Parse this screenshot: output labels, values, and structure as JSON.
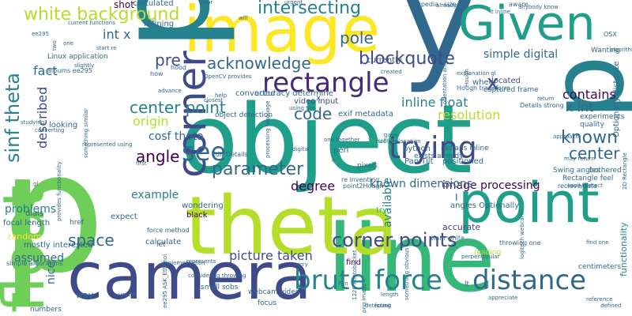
{
  "colors": {
    "background": "#ffffff",
    "palette": [
      "#440154",
      "#482878",
      "#3e4a89",
      "#31688e",
      "#26828e",
      "#1f9e89",
      "#35b779",
      "#6ece58",
      "#b5de2b",
      "#fde725"
    ]
  },
  "words": [
    {
      "text": "object",
      "color": "#1f9e89"
    },
    {
      "text": "p",
      "color": "#6ece58"
    },
    {
      "text": "float",
      "color": "#6ece58"
    },
    {
      "text": "line",
      "color": "#35b779"
    },
    {
      "text": "y",
      "color": "#31688e"
    },
    {
      "text": "theta",
      "color": "#b5de2b"
    },
    {
      "text": "image",
      "color": "#fde725"
    },
    {
      "text": "p",
      "color": "#26828e"
    },
    {
      "text": "camera",
      "color": "#3e4a89"
    },
    {
      "text": "Given",
      "color": "#1f9e89"
    },
    {
      "text": "point",
      "color": "#1f9e89"
    },
    {
      "text": "corner",
      "color": "#3e4a89"
    },
    {
      "text": "rectangle",
      "color": "#482878"
    },
    {
      "text": "brute force",
      "color": "#26828e"
    },
    {
      "text": "distance",
      "color": "#31688e"
    },
    {
      "text": "trying",
      "color": "#3e4a89"
    },
    {
      "text": "parameter",
      "color": "#31688e"
    },
    {
      "text": "sinf theta",
      "color": "#26828e"
    },
    {
      "text": "white background",
      "color": "#b5de2b"
    },
    {
      "text": "intersecting",
      "color": "#26828e"
    },
    {
      "text": "corner points",
      "color": "#3e4a89"
    },
    {
      "text": "see",
      "color": "#31688e"
    },
    {
      "text": "center point",
      "color": "#26828e"
    },
    {
      "text": "known",
      "color": "#31688e"
    },
    {
      "text": "center",
      "color": "#31688e"
    },
    {
      "text": "x",
      "color": "#3e4a89"
    },
    {
      "text": "code",
      "color": "#31688e"
    },
    {
      "text": "angle",
      "color": "#440154"
    },
    {
      "text": "blockquote",
      "color": "#3e4a89"
    },
    {
      "text": "pole",
      "color": "#31688e"
    },
    {
      "text": "acknowledge",
      "color": "#31688e"
    },
    {
      "text": "pre",
      "color": "#3e4a89"
    },
    {
      "text": "fact",
      "color": "#31688e"
    },
    {
      "text": "space",
      "color": "#31688e"
    },
    {
      "text": "image processing",
      "color": "#440154"
    },
    {
      "text": "inline float",
      "color": "#26828e"
    },
    {
      "text": "origin",
      "color": "#b5de2b"
    },
    {
      "text": "resolution",
      "color": "#b5de2b"
    },
    {
      "text": "cosf theta",
      "color": "#31688e"
    },
    {
      "text": "picture taken",
      "color": "#3e4a89"
    },
    {
      "text": "described",
      "color": "#3e4a89"
    },
    {
      "text": "assumed",
      "color": "#31688e"
    },
    {
      "text": "problems",
      "color": "#26828e"
    },
    {
      "text": "known dimensions",
      "color": "#31688e"
    },
    {
      "text": "degree",
      "color": "#440154"
    },
    {
      "text": "x int",
      "color": "#31688e"
    },
    {
      "text": "int x",
      "color": "#31688e"
    },
    {
      "text": "contains",
      "color": "#440154"
    },
    {
      "text": "simple digital",
      "color": "#31688e"
    },
    {
      "text": "example",
      "color": "#26828e"
    },
    {
      "text": "nice",
      "color": "#31688e"
    },
    {
      "text": "available",
      "color": "#26828e"
    },
    {
      "text": "shot",
      "color": "#440154"
    },
    {
      "text": "calculated",
      "color": "#31688e"
    },
    {
      "text": "refining",
      "color": "#31688e"
    },
    {
      "text": "Linux application",
      "color": "#31688e"
    },
    {
      "text": "albums ee295",
      "color": "#31688e"
    },
    {
      "text": "converted",
      "color": "#31688e"
    },
    {
      "text": "accuracy determine",
      "color": "#31688e"
    },
    {
      "text": "video input",
      "color": "#3e4a89"
    },
    {
      "text": "exif metadata",
      "color": "#31688e"
    },
    {
      "text": "object detection",
      "color": "#31688e"
    },
    {
      "text": "Hough transform",
      "color": "#31688e"
    },
    {
      "text": "Details strong",
      "color": "#31688e"
    },
    {
      "text": "currently",
      "color": "#3e4a89"
    },
    {
      "text": "located",
      "color": "#3e4a89"
    },
    {
      "text": "captured frame",
      "color": "#31688e"
    },
    {
      "text": "wheel",
      "color": "#31688e"
    },
    {
      "text": "experiments",
      "color": "#31688e"
    },
    {
      "text": "quality",
      "color": "#31688e"
    },
    {
      "text": "Optionally distance",
      "color": "#31688e"
    },
    {
      "text": "functionality",
      "color": "#26828e"
    },
    {
      "text": "perl",
      "color": "#31688e"
    },
    {
      "text": "python",
      "color": "#31688e"
    },
    {
      "text": "figured",
      "color": "#35b779"
    },
    {
      "text": "positioned",
      "color": "#31688e"
    },
    {
      "text": "pixels",
      "color": "#31688e"
    },
    {
      "text": "Pan Tilt",
      "color": "#31688e"
    },
    {
      "text": "exists already",
      "color": "#31688e"
    },
    {
      "text": "radians inline",
      "color": "#31688e"
    },
    {
      "text": "Swing angles",
      "color": "#31688e"
    },
    {
      "text": "Rectangle feel",
      "color": "#31688e"
    },
    {
      "text": "bothered",
      "color": "#31688e"
    },
    {
      "text": "Edit Details",
      "color": "#31688e"
    },
    {
      "text": "re inventing",
      "color": "#31688e"
    },
    {
      "text": "point2Hough",
      "color": "#31688e"
    },
    {
      "text": "angles Optionally",
      "color": "#31688e"
    },
    {
      "text": "recieve data",
      "color": "#31688e"
    },
    {
      "text": "accurate",
      "color": "#3e4a89"
    },
    {
      "text": "plain white",
      "color": "#31688e"
    },
    {
      "text": "throwing one",
      "color": "#31688e"
    },
    {
      "text": "reading",
      "color": "#b5de2b"
    },
    {
      "text": "centimeters",
      "color": "#31688e"
    },
    {
      "text": "focal length",
      "color": "#31688e"
    },
    {
      "text": "href",
      "color": "#31688e"
    },
    {
      "text": "dials",
      "color": "#31688e"
    },
    {
      "text": "expect",
      "color": "#31688e"
    },
    {
      "text": "random",
      "color": "#fde725"
    },
    {
      "text": "mostly interested",
      "color": "#31688e"
    },
    {
      "text": "simple algorithms",
      "color": "#31688e"
    },
    {
      "text": "calculate",
      "color": "#31688e"
    },
    {
      "text": "force method",
      "color": "#31688e"
    },
    {
      "text": "wondering",
      "color": "#31688e"
    },
    {
      "text": "black",
      "color": "#440154"
    },
    {
      "text": "find",
      "color": "#440154"
    },
    {
      "text": "webcam video",
      "color": "#31688e"
    },
    {
      "text": "focus",
      "color": "#31688e"
    },
    {
      "text": "small sobs",
      "color": "#31688e"
    },
    {
      "text": "way",
      "color": "#31688e"
    },
    {
      "text": "numbers",
      "color": "#31688e"
    },
    {
      "text": "Wikipedia",
      "color": "#31688e"
    },
    {
      "text": "size",
      "color": "#31688e"
    },
    {
      "text": "aware",
      "color": "#31688e"
    },
    {
      "text": "Wanting",
      "color": "#31688e"
    },
    {
      "text": "explanation gl",
      "color": "#31688e"
    },
    {
      "text": "return",
      "color": "#31688e"
    },
    {
      "text": "hood",
      "color": "#31688e"
    },
    {
      "text": "how",
      "color": "#31688e"
    },
    {
      "text": "OSX",
      "color": "#31688e"
    },
    {
      "text": "looking",
      "color": "#31688e"
    },
    {
      "text": "let",
      "color": "#31688e"
    },
    {
      "text": "OpenCV provides",
      "color": "#31688e"
    },
    {
      "text": "try",
      "color": "#35b779"
    },
    {
      "text": "one together",
      "color": "#31688e"
    },
    {
      "text": "processing language",
      "color": "#31688e"
    },
    {
      "text": "start re",
      "color": "#31688e"
    },
    {
      "text": "something similar",
      "color": "#31688e"
    },
    {
      "text": "advance",
      "color": "#31688e"
    },
    {
      "text": "represented using",
      "color": "#31688e"
    },
    {
      "text": "closest",
      "color": "#31688e"
    },
    {
      "text": "gave",
      "color": "#31688e"
    },
    {
      "text": "lt inline",
      "color": "#31688e"
    },
    {
      "text": "anybody know",
      "color": "#31688e"
    },
    {
      "text": "1228 Photobucket",
      "color": "#31688e"
    },
    {
      "text": "png image",
      "color": "#31688e"
    },
    {
      "text": "ee295 ASK_Ethanol",
      "color": "#31688e"
    },
    {
      "text": "converting",
      "color": "#31688e"
    },
    {
      "text": "find one",
      "color": "#31688e"
    },
    {
      "text": "reference",
      "color": "#31688e"
    },
    {
      "text": "implementation",
      "color": "#31688e"
    },
    {
      "text": "considering throwing",
      "color": "#31688e"
    },
    {
      "text": "represents",
      "color": "#31688e"
    },
    {
      "text": "sorry",
      "color": "#31688e"
    },
    {
      "text": "perpendicular",
      "color": "#31688e"
    },
    {
      "text": "detecting",
      "color": "#31688e"
    },
    {
      "text": "found",
      "color": "#31688e"
    },
    {
      "text": "length",
      "color": "#31688e"
    },
    {
      "text": "Hough",
      "color": "#31688e"
    },
    {
      "text": "created",
      "color": "#31688e"
    },
    {
      "text": "already first",
      "color": "#31688e"
    },
    {
      "text": "orientation angle",
      "color": "#31688e"
    },
    {
      "text": "current functions",
      "color": "#31688e"
    },
    {
      "text": "two",
      "color": "#31688e"
    },
    {
      "text": "one",
      "color": "#31688e"
    },
    {
      "text": "first",
      "color": "#31688e"
    },
    {
      "text": "will",
      "color": "#31688e"
    },
    {
      "text": "clear",
      "color": "#31688e"
    },
    {
      "text": "help",
      "color": "#31688e"
    },
    {
      "text": "gl",
      "color": "#31688e"
    },
    {
      "text": "c",
      "color": "#31688e"
    },
    {
      "text": "lt",
      "color": "#31688e"
    },
    {
      "text": "2D Rectangle",
      "color": "#31688e"
    },
    {
      "text": "provides functionality",
      "color": "#31688e"
    },
    {
      "text": "I",
      "color": "#31688e"
    },
    {
      "text": "may return",
      "color": "#31688e"
    },
    {
      "text": "easily detect",
      "color": "#31688e"
    },
    {
      "text": "had explanation",
      "color": "#31688e"
    },
    {
      "text": "digital",
      "color": "#31688e"
    },
    {
      "text": "approach",
      "color": "#31688e"
    },
    {
      "text": "studying",
      "color": "#31688e"
    },
    {
      "text": "using the",
      "color": "#31688e"
    },
    {
      "text": "defined",
      "color": "#31688e"
    },
    {
      "text": "urgent",
      "color": "#31688e"
    },
    {
      "text": "ee295",
      "color": "#31688e"
    },
    {
      "text": "algorithm",
      "color": "#31688e"
    },
    {
      "text": "slightly",
      "color": "#31688e"
    },
    {
      "text": "vector",
      "color": "#31688e"
    },
    {
      "text": "something obvious",
      "color": "#31688e"
    },
    {
      "text": "Pan",
      "color": "#31688e"
    },
    {
      "text": "logitech webcam",
      "color": "#31688e"
    },
    {
      "text": "appreciate",
      "color": "#31688e"
    },
    {
      "text": "x",
      "color": "#31688e"
    }
  ]
}
